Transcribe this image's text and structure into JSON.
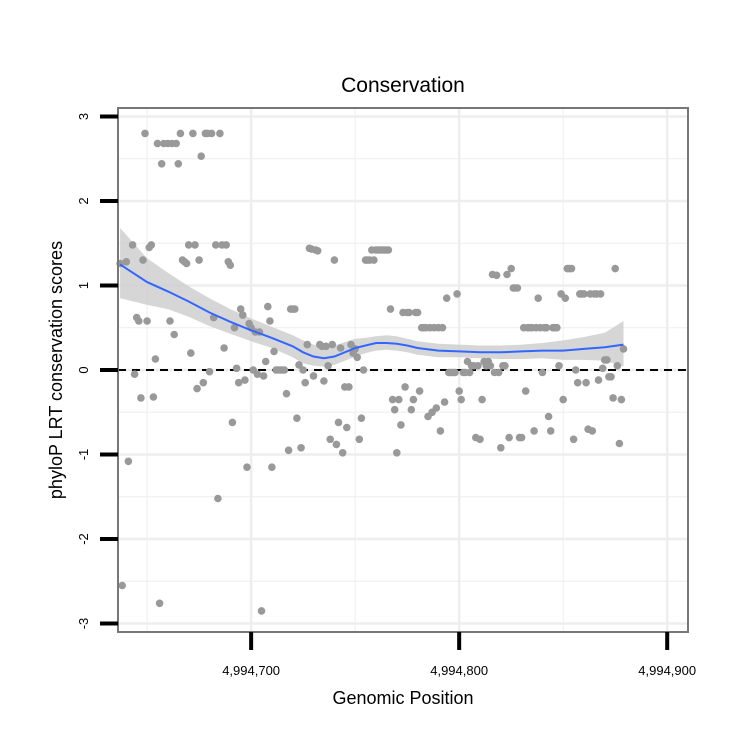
{
  "chart_data": {
    "type": "scatter",
    "title": "Conservation",
    "xlabel": "Genomic Position",
    "ylabel": "phyloP LRT conservation scores",
    "xlim": [
      4994636,
      4994910
    ],
    "ylim": [
      -3.1,
      3.1
    ],
    "x_ticks": [
      4994700,
      4994800,
      4994900
    ],
    "x_tick_labels": [
      "4,994,700",
      "4,994,800",
      "4,994,900"
    ],
    "y_ticks": [
      -3,
      -2,
      -1,
      0,
      1,
      2,
      3
    ],
    "y_tick_labels": [
      "-3",
      "-2",
      "-1",
      "0",
      "1",
      "2",
      "3"
    ],
    "reference_line": {
      "y": 0,
      "style": "dashed"
    },
    "colors": {
      "points": "#999999",
      "smooth": "#3366FF",
      "band": "#cccccc",
      "panel_border": "#777777",
      "grid": "#eeeeee"
    },
    "points": [
      [
        4994637,
        1.26
      ],
      [
        4994638,
        -2.55
      ],
      [
        4994640,
        1.28
      ],
      [
        4994641,
        -1.08
      ],
      [
        4994643,
        1.48
      ],
      [
        4994644,
        -0.05
      ],
      [
        4994645,
        0.62
      ],
      [
        4994646,
        0.58
      ],
      [
        4994647,
        -0.33
      ],
      [
        4994648,
        1.3
      ],
      [
        4994649,
        2.8
      ],
      [
        4994650,
        0.58
      ],
      [
        4994651,
        1.45
      ],
      [
        4994652,
        1.48
      ],
      [
        4994653,
        -0.32
      ],
      [
        4994654,
        0.13
      ],
      [
        4994655,
        2.68
      ],
      [
        4994656,
        -2.76
      ],
      [
        4994657,
        2.44
      ],
      [
        4994658,
        2.68
      ],
      [
        4994660,
        2.68
      ],
      [
        4994661,
        0.58
      ],
      [
        4994662,
        2.68
      ],
      [
        4994663,
        0.42
      ],
      [
        4994664,
        2.68
      ],
      [
        4994665,
        2.44
      ],
      [
        4994666,
        2.8
      ],
      [
        4994667,
        1.3
      ],
      [
        4994668,
        1.28
      ],
      [
        4994669,
        1.26
      ],
      [
        4994670,
        1.48
      ],
      [
        4994671,
        0.2
      ],
      [
        4994672,
        2.8
      ],
      [
        4994673,
        1.48
      ],
      [
        4994674,
        -0.22
      ],
      [
        4994675,
        1.3
      ],
      [
        4994676,
        2.53
      ],
      [
        4994677,
        -0.15
      ],
      [
        4994678,
        2.8
      ],
      [
        4994679,
        2.8
      ],
      [
        4994680,
        -0.02
      ],
      [
        4994681,
        2.8
      ],
      [
        4994682,
        0.62
      ],
      [
        4994683,
        1.48
      ],
      [
        4994684,
        -1.52
      ],
      [
        4994685,
        2.8
      ],
      [
        4994686,
        1.48
      ],
      [
        4994687,
        0.26
      ],
      [
        4994688,
        1.48
      ],
      [
        4994689,
        1.28
      ],
      [
        4994690,
        1.24
      ],
      [
        4994691,
        -0.62
      ],
      [
        4994692,
        0.5
      ],
      [
        4994693,
        0.02
      ],
      [
        4994694,
        -0.15
      ],
      [
        4994695,
        0.72
      ],
      [
        4994696,
        0.65
      ],
      [
        4994697,
        -0.12
      ],
      [
        4994698,
        -1.15
      ],
      [
        4994699,
        0.55
      ],
      [
        4994700,
        0.5
      ],
      [
        4994701,
        0.0
      ],
      [
        4994702,
        0.45
      ],
      [
        4994703,
        -0.05
      ],
      [
        4994704,
        0.45
      ],
      [
        4994705,
        -2.85
      ],
      [
        4994706,
        -0.07
      ],
      [
        4994707,
        0.1
      ],
      [
        4994708,
        0.75
      ],
      [
        4994709,
        0.58
      ],
      [
        4994710,
        -1.15
      ],
      [
        4994711,
        0.22
      ],
      [
        4994712,
        0.0
      ],
      [
        4994713,
        0.0
      ],
      [
        4994714,
        0.0
      ],
      [
        4994715,
        0.0
      ],
      [
        4994716,
        0.0
      ],
      [
        4994717,
        -0.28
      ],
      [
        4994718,
        -0.95
      ],
      [
        4994719,
        0.72
      ],
      [
        4994720,
        0.72
      ],
      [
        4994721,
        0.72
      ],
      [
        4994722,
        -0.57
      ],
      [
        4994723,
        0.06
      ],
      [
        4994724,
        -0.92
      ],
      [
        4994725,
        0.0
      ],
      [
        4994726,
        -0.15
      ],
      [
        4994727,
        0.3
      ],
      [
        4994728,
        1.44
      ],
      [
        4994729,
        1.43
      ],
      [
        4994730,
        -0.07
      ],
      [
        4994731,
        1.42
      ],
      [
        4994732,
        1.41
      ],
      [
        4994733,
        0.3
      ],
      [
        4994734,
        0.28
      ],
      [
        4994735,
        -0.13
      ],
      [
        4994736,
        0.28
      ],
      [
        4994737,
        0.05
      ],
      [
        4994738,
        -0.82
      ],
      [
        4994739,
        0.3
      ],
      [
        4994740,
        1.3
      ],
      [
        4994741,
        -0.88
      ],
      [
        4994742,
        -0.62
      ],
      [
        4994743,
        0.26
      ],
      [
        4994744,
        -0.98
      ],
      [
        4994745,
        -0.2
      ],
      [
        4994746,
        -0.68
      ],
      [
        4994747,
        -0.2
      ],
      [
        4994748,
        0.3
      ],
      [
        4994749,
        0.2
      ],
      [
        4994750,
        0.25
      ],
      [
        4994751,
        0.15
      ],
      [
        4994752,
        -0.82
      ],
      [
        4994753,
        -0.57
      ],
      [
        4994754,
        0.0
      ],
      [
        4994755,
        1.3
      ],
      [
        4994756,
        1.3
      ],
      [
        4994757,
        1.3
      ],
      [
        4994758,
        1.42
      ],
      [
        4994759,
        1.3
      ],
      [
        4994760,
        1.42
      ],
      [
        4994761,
        1.42
      ],
      [
        4994762,
        1.42
      ],
      [
        4994763,
        1.42
      ],
      [
        4994764,
        1.42
      ],
      [
        4994765,
        1.42
      ],
      [
        4994766,
        1.42
      ],
      [
        4994767,
        0.72
      ],
      [
        4994768,
        -0.35
      ],
      [
        4994769,
        -0.47
      ],
      [
        4994770,
        -0.98
      ],
      [
        4994771,
        -0.35
      ],
      [
        4994772,
        -0.65
      ],
      [
        4994773,
        0.68
      ],
      [
        4994774,
        -0.2
      ],
      [
        4994775,
        0.68
      ],
      [
        4994776,
        0.68
      ],
      [
        4994777,
        -0.47
      ],
      [
        4994778,
        -0.35
      ],
      [
        4994779,
        0.68
      ],
      [
        4994780,
        0.68
      ],
      [
        4994781,
        -0.25
      ],
      [
        4994782,
        0.5
      ],
      [
        4994783,
        0.5
      ],
      [
        4994784,
        0.5
      ],
      [
        4994785,
        -0.55
      ],
      [
        4994786,
        0.5
      ],
      [
        4994787,
        -0.5
      ],
      [
        4994788,
        0.5
      ],
      [
        4994789,
        -0.45
      ],
      [
        4994790,
        0.5
      ],
      [
        4994791,
        -0.72
      ],
      [
        4994792,
        0.5
      ],
      [
        4994793,
        -0.38
      ],
      [
        4994794,
        0.85
      ],
      [
        4994795,
        -0.03
      ],
      [
        4994796,
        -0.03
      ],
      [
        4994797,
        -0.03
      ],
      [
        4994798,
        -0.03
      ],
      [
        4994799,
        0.9
      ],
      [
        4994800,
        -0.25
      ],
      [
        4994801,
        -0.35
      ],
      [
        4994802,
        -0.03
      ],
      [
        4994803,
        -0.03
      ],
      [
        4994804,
        0.1
      ],
      [
        4994805,
        -0.03
      ],
      [
        4994806,
        0.05
      ],
      [
        4994807,
        0.05
      ],
      [
        4994808,
        -0.8
      ],
      [
        4994809,
        0.05
      ],
      [
        4994810,
        -0.82
      ],
      [
        4994811,
        -0.35
      ],
      [
        4994812,
        0.1
      ],
      [
        4994813,
        0.05
      ],
      [
        4994814,
        0.1
      ],
      [
        4994815,
        0.05
      ],
      [
        4994816,
        1.13
      ],
      [
        4994817,
        -0.03
      ],
      [
        4994818,
        1.12
      ],
      [
        4994819,
        -0.03
      ],
      [
        4994820,
        -0.92
      ],
      [
        4994821,
        0.05
      ],
      [
        4994822,
        0.05
      ],
      [
        4994823,
        1.13
      ],
      [
        4994824,
        -0.8
      ],
      [
        4994825,
        1.2
      ],
      [
        4994826,
        0.97
      ],
      [
        4994827,
        0.97
      ],
      [
        4994828,
        0.97
      ],
      [
        4994829,
        -0.8
      ],
      [
        4994830,
        -0.8
      ],
      [
        4994831,
        0.5
      ],
      [
        4994832,
        -0.25
      ],
      [
        4994833,
        0.5
      ],
      [
        4994834,
        0.5
      ],
      [
        4994835,
        0.5
      ],
      [
        4994836,
        -0.72
      ],
      [
        4994837,
        0.5
      ],
      [
        4994838,
        0.85
      ],
      [
        4994839,
        0.5
      ],
      [
        4994840,
        -0.03
      ],
      [
        4994841,
        0.5
      ],
      [
        4994842,
        0.5
      ],
      [
        4994843,
        -0.55
      ],
      [
        4994844,
        -0.72
      ],
      [
        4994845,
        0.5
      ],
      [
        4994846,
        0.5
      ],
      [
        4994847,
        0.5
      ],
      [
        4994848,
        0.05
      ],
      [
        4994849,
        0.9
      ],
      [
        4994850,
        -0.35
      ],
      [
        4994851,
        0.85
      ],
      [
        4994852,
        1.2
      ],
      [
        4994853,
        1.2
      ],
      [
        4994854,
        1.2
      ],
      [
        4994855,
        -0.82
      ],
      [
        4994856,
        0.0
      ],
      [
        4994857,
        -0.15
      ],
      [
        4994858,
        0.9
      ],
      [
        4994859,
        0.9
      ],
      [
        4994860,
        0.9
      ],
      [
        4994861,
        -0.15
      ],
      [
        4994862,
        -0.7
      ],
      [
        4994863,
        0.9
      ],
      [
        4994864,
        -0.72
      ],
      [
        4994865,
        0.9
      ],
      [
        4994866,
        0.9
      ],
      [
        4994867,
        -0.12
      ],
      [
        4994868,
        0.9
      ],
      [
        4994869,
        0.02
      ],
      [
        4994870,
        0.12
      ],
      [
        4994871,
        0.12
      ],
      [
        4994872,
        -0.08
      ],
      [
        4994873,
        -0.08
      ],
      [
        4994874,
        -0.33
      ],
      [
        4994875,
        1.2
      ],
      [
        4994876,
        0.05
      ],
      [
        4994877,
        -0.87
      ],
      [
        4994878,
        -0.35
      ],
      [
        4994879,
        0.25
      ]
    ],
    "smooth_x": [
      4994637,
      4994650,
      4994660,
      4994670,
      4994680,
      4994690,
      4994700,
      4994710,
      4994720,
      4994725,
      4994730,
      4994735,
      4994740,
      4994745,
      4994750,
      4994755,
      4994760,
      4994765,
      4994770,
      4994775,
      4994780,
      4994790,
      4994800,
      4994810,
      4994820,
      4994830,
      4994840,
      4994850,
      4994860,
      4994870,
      4994879
    ],
    "smooth_y": [
      1.25,
      1.04,
      0.93,
      0.81,
      0.68,
      0.57,
      0.47,
      0.38,
      0.28,
      0.21,
      0.16,
      0.14,
      0.16,
      0.21,
      0.26,
      0.29,
      0.32,
      0.32,
      0.31,
      0.29,
      0.26,
      0.23,
      0.22,
      0.21,
      0.21,
      0.22,
      0.23,
      0.23,
      0.25,
      0.27,
      0.3
    ],
    "band_lower": [
      0.85,
      0.77,
      0.72,
      0.63,
      0.52,
      0.43,
      0.34,
      0.26,
      0.15,
      0.08,
      0.05,
      0.04,
      0.06,
      0.11,
      0.16,
      0.2,
      0.23,
      0.24,
      0.23,
      0.21,
      0.18,
      0.15,
      0.15,
      0.14,
      0.13,
      0.13,
      0.14,
      0.12,
      0.12,
      0.11,
      0.04
    ],
    "band_upper": [
      1.68,
      1.32,
      1.15,
      0.99,
      0.85,
      0.72,
      0.61,
      0.51,
      0.41,
      0.35,
      0.3,
      0.28,
      0.29,
      0.33,
      0.37,
      0.38,
      0.4,
      0.41,
      0.4,
      0.37,
      0.34,
      0.31,
      0.3,
      0.29,
      0.29,
      0.3,
      0.32,
      0.35,
      0.39,
      0.44,
      0.58
    ]
  }
}
